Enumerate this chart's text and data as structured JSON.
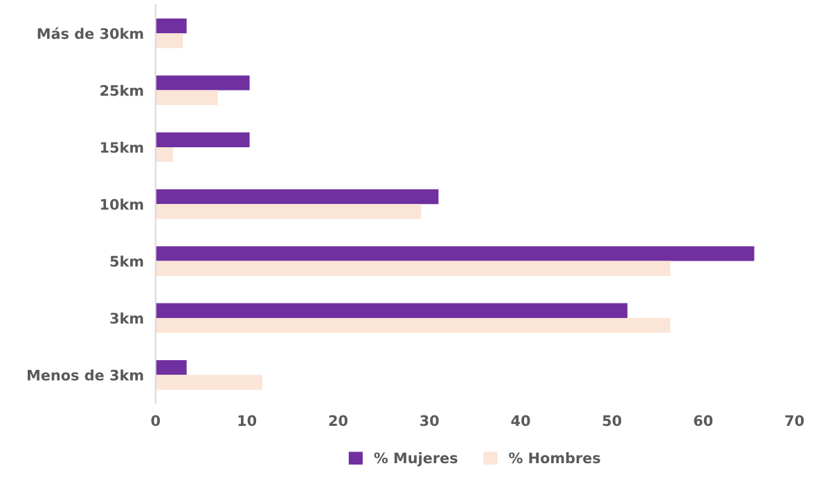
{
  "chart_data": {
    "type": "bar",
    "orientation": "horizontal",
    "categories": [
      "Más de 30km",
      "25km",
      "15km",
      "10km",
      "5km",
      "3km",
      "Menos de 3km"
    ],
    "series": [
      {
        "name": "% Mujeres",
        "color": "#7030a0",
        "values": [
          3.4,
          10.3,
          10.3,
          31.0,
          65.6,
          51.7,
          3.4
        ]
      },
      {
        "name": "% Hombres",
        "color": "#fbe5d6",
        "values": [
          3.0,
          6.8,
          1.9,
          29.1,
          56.4,
          56.4,
          11.7
        ]
      }
    ],
    "xlim": [
      0,
      70
    ],
    "xticks": [
      0,
      10,
      20,
      30,
      40,
      50,
      60,
      70
    ],
    "grid": false,
    "legend": "bottom"
  }
}
